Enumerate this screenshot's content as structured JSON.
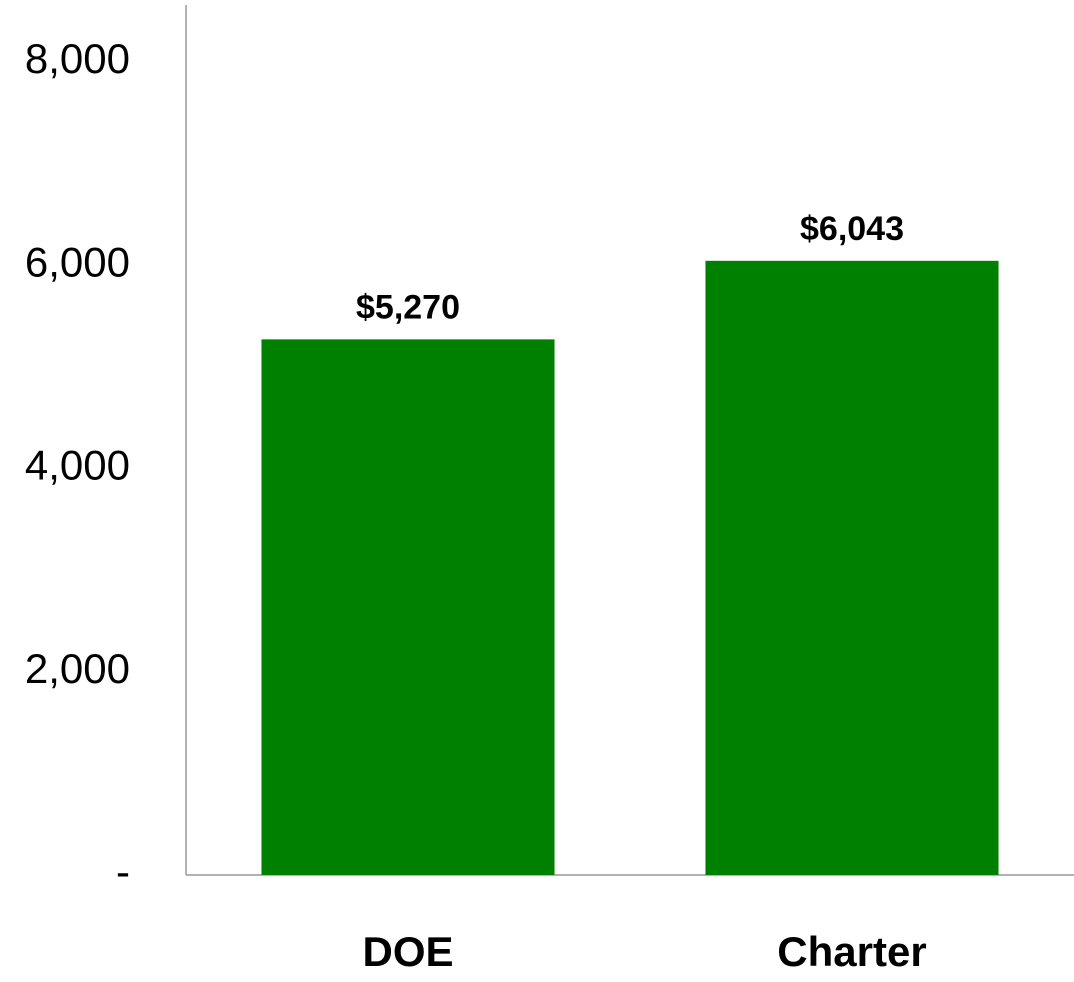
{
  "chart_data": {
    "type": "bar",
    "categories": [
      "DOE",
      "Charter"
    ],
    "values": [
      5270,
      6043
    ],
    "value_labels": [
      "$5,270",
      "$6,043"
    ],
    "color": "#008000",
    "ylim": [
      0,
      8560
    ],
    "yticks": [
      {
        "value": 0,
        "label": "-"
      },
      {
        "value": 2000,
        "label": "2,000"
      },
      {
        "value": 4000,
        "label": "4,000"
      },
      {
        "value": 6000,
        "label": "6,000"
      },
      {
        "value": 8000,
        "label": "8,000"
      }
    ],
    "grid": false
  }
}
